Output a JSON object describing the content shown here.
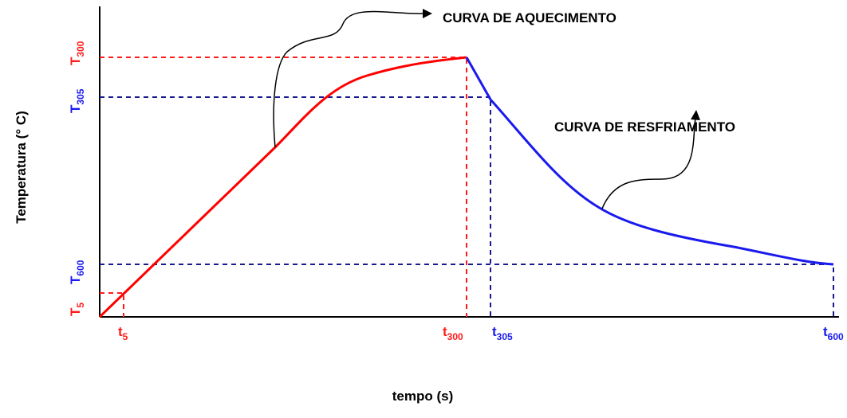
{
  "axes": {
    "y_title": "Temperatura (° C)",
    "x_title": "tempo (s)"
  },
  "annotations": {
    "heating": "CURVA DE AQUECIMENTO",
    "cooling": "CURVA DE RESFRIAMENTO"
  },
  "y_labels": [
    {
      "base": "T",
      "sub": "300"
    },
    {
      "base": "T",
      "sub": "305"
    },
    {
      "base": "T",
      "sub": "600"
    },
    {
      "base": "T",
      "sub": "5"
    }
  ],
  "x_labels": [
    {
      "base": "t",
      "sub": "5"
    },
    {
      "base": "t",
      "sub": "300"
    },
    {
      "base": "t",
      "sub": "305"
    },
    {
      "base": "t",
      "sub": "600"
    }
  ]
}
